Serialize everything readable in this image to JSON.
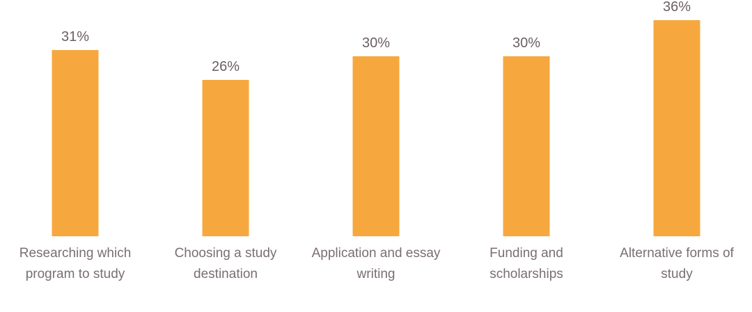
{
  "chart": {
    "background_color": "#ffffff",
    "bar_color": "#F6A83F",
    "value_label_color": "#6B6061",
    "category_label_color": "#796F6F"
  },
  "chart_data": {
    "type": "bar",
    "title": "",
    "xlabel": "",
    "ylabel": "",
    "categories": [
      "Researching which program to study",
      "Choosing a study destination",
      "Application and essay writing",
      "Funding and scholarships",
      "Alternative forms of study"
    ],
    "values": [
      31,
      26,
      30,
      30,
      36
    ],
    "value_labels": [
      "31%",
      "26%",
      "30%",
      "30%",
      "36%"
    ],
    "unit": "%",
    "ylim": [
      0,
      39
    ],
    "grid": false,
    "axes_visible": false,
    "legend_position": "none",
    "bar_color": "#F6A83F"
  }
}
